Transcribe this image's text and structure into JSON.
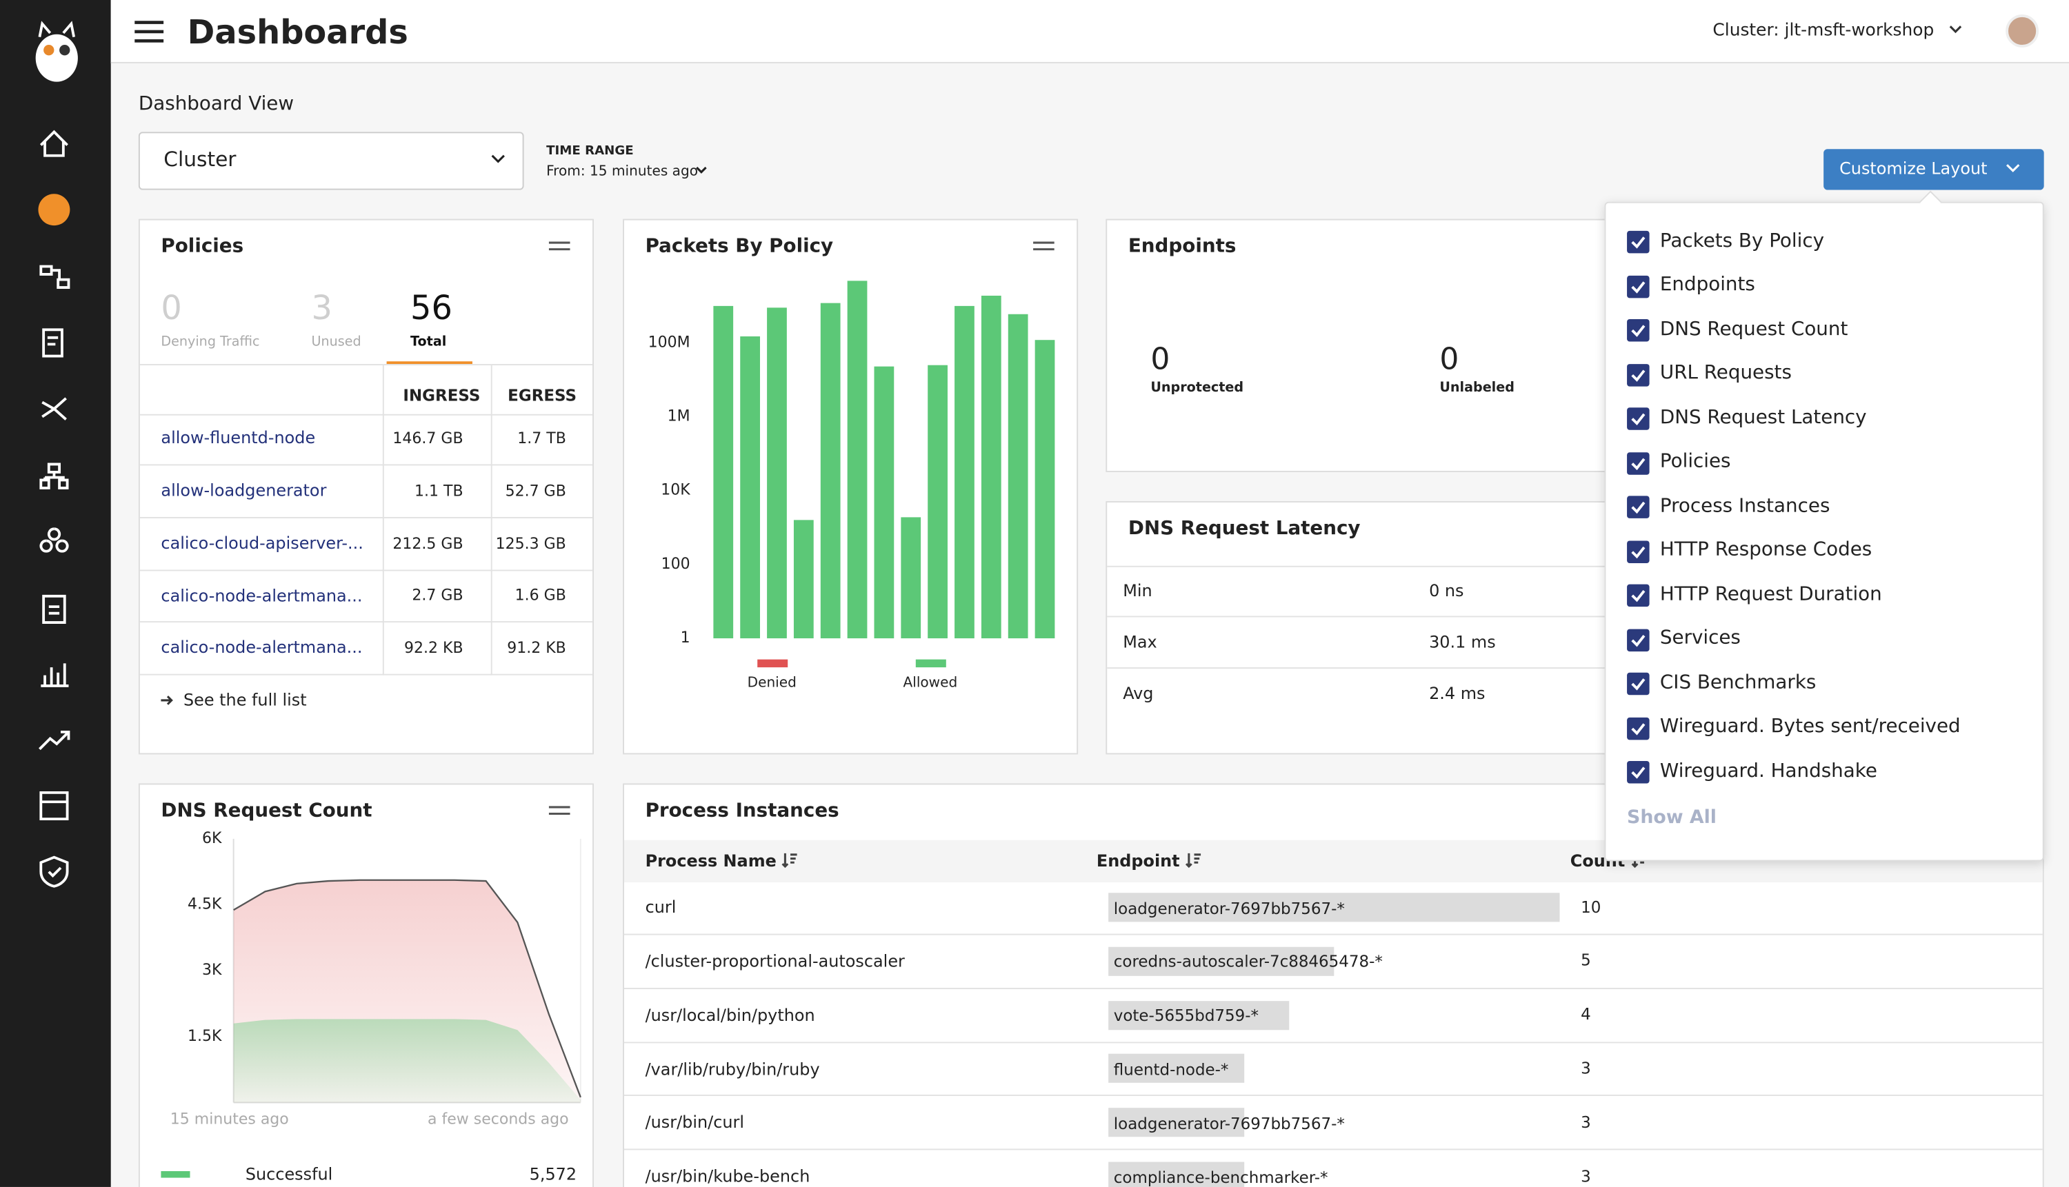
{
  "header": {
    "title": "Dashboards",
    "cluster": "Cluster: jlt-msft-workshop"
  },
  "view": {
    "label": "Dashboard View",
    "select": "Cluster",
    "time_range_label": "TIME RANGE",
    "time_range": "From: 15 minutes ago",
    "customize": "Customize Layout"
  },
  "policies": {
    "title": "Policies",
    "selected": 2,
    "stats": [
      {
        "value": "0",
        "label": "Denying Traffic"
      },
      {
        "value": "3",
        "label": "Unused"
      },
      {
        "value": "56",
        "label": "Total"
      }
    ],
    "columns": [
      "INGRESS",
      "EGRESS"
    ],
    "rows": [
      [
        "allow-fluentd-node",
        "146.7 GB",
        "1.7 TB"
      ],
      [
        "allow-loadgenerator",
        "1.1 TB",
        "52.7 GB"
      ],
      [
        "calico-cloud-apiserver-...",
        "212.5 GB",
        "125.3 GB"
      ],
      [
        "calico-node-alertmana...",
        "2.7 GB",
        "1.6 GB"
      ],
      [
        "calico-node-alertmana...",
        "92.2 KB",
        "91.2 KB"
      ]
    ],
    "link": "See the full list"
  },
  "endpoints": {
    "title": "Endpoints",
    "stats": [
      {
        "value": "0",
        "label": "Unprotected"
      },
      {
        "value": "0",
        "label": "Unlabeled"
      }
    ]
  },
  "dns_latency": {
    "title": "DNS Request Latency",
    "rows": [
      [
        "Min",
        "0 ns"
      ],
      [
        "Max",
        "30.1 ms"
      ],
      [
        "Avg",
        "2.4 ms"
      ]
    ]
  },
  "process": {
    "title": "Process Instances",
    "columns": [
      "Process Name",
      "Endpoint",
      "Count"
    ],
    "rows": [
      [
        "curl",
        "loadgenerator-7697bb7567-*",
        "10"
      ],
      [
        "/cluster-proportional-autoscaler",
        "coredns-autoscaler-7c88465478-*",
        "5"
      ],
      [
        "/usr/local/bin/python",
        "vote-5655bd759-*",
        "4"
      ],
      [
        "/var/lib/ruby/bin/ruby",
        "fluentd-node-*",
        "3"
      ],
      [
        "/usr/bin/curl",
        "loadgenerator-7697bb7567-*",
        "3"
      ],
      [
        "/usr/bin/kube-bench",
        "compliance-benchmarker-*",
        "3"
      ]
    ]
  },
  "layout_menu": {
    "items": [
      "Packets By Policy",
      "Endpoints",
      "DNS Request Count",
      "URL Requests",
      "DNS Request Latency",
      "Policies",
      "Process Instances",
      "HTTP Response Codes",
      "HTTP Request Duration",
      "Services",
      "CIS Benchmarks",
      "Wireguard. Bytes sent/received",
      "Wireguard. Handshake"
    ],
    "show_all": "Show All"
  },
  "chart_data": [
    {
      "type": "bar",
      "title": "Packets By Policy",
      "log_scale": true,
      "categories": [
        null,
        null,
        null,
        null,
        null,
        null,
        null,
        null,
        null,
        null,
        null,
        null,
        null
      ],
      "series": [
        {
          "name": "Denied",
          "color": "#e05252",
          "values": [
            null,
            null,
            null,
            null,
            null,
            null,
            null,
            null,
            null,
            null,
            null,
            null,
            null
          ]
        },
        {
          "name": "Allowed",
          "color": "#5cc877",
          "values": [
            1000000000,
            150000000,
            900000000,
            1600,
            1200000000,
            4800000000,
            23000000,
            1900,
            25000000,
            1000000000,
            1900000000,
            600000000,
            120000000
          ]
        }
      ],
      "ylim": [
        1,
        10000000000
      ],
      "yticks": [
        1,
        100,
        {
          "value": 10000,
          "label": "10K"
        },
        {
          "value": 1000000,
          "label": "1M"
        },
        {
          "value": 100000000,
          "label": "100M"
        }
      ]
    },
    {
      "type": "area",
      "title": "DNS Request Count",
      "categories": [
        "15 minutes ago",
        null,
        null,
        null,
        null,
        null,
        null,
        null,
        null,
        null,
        null,
        "a few seconds ago"
      ],
      "series": [
        {
          "color": "#e88a8a",
          "line": "#555555",
          "values": [
            4380,
            4800,
            4980,
            5040,
            5060,
            5060,
            5060,
            5060,
            5040,
            4100,
            2000,
            120
          ]
        },
        {
          "name": "Successful",
          "color": "#5cc877",
          "total_label": "5,572",
          "values": [
            1800,
            1880,
            1900,
            1900,
            1900,
            1900,
            1900,
            1900,
            1880,
            1650,
            900,
            60
          ]
        }
      ],
      "ylim": [
        0,
        6000
      ],
      "yticks": [
        {
          "value": 1500,
          "label": "1.5K"
        },
        {
          "value": 3000,
          "label": "3K"
        },
        {
          "value": 4500,
          "label": "4.5K"
        },
        {
          "value": 6000,
          "label": "6K"
        }
      ]
    }
  ]
}
